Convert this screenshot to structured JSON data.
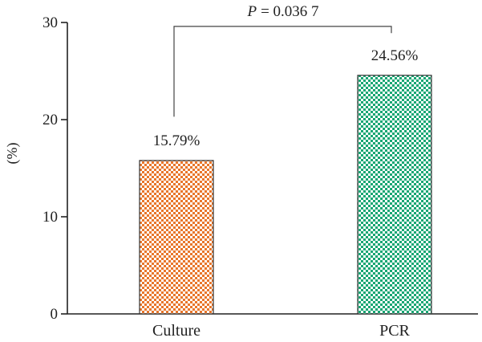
{
  "chart_data": {
    "type": "bar",
    "categories": [
      "Culture",
      "PCR"
    ],
    "values": [
      15.79,
      24.56
    ],
    "value_labels": [
      "15.79%",
      "24.56%"
    ],
    "colors": [
      "#e8762b",
      "#17a673"
    ],
    "ylabel": "(%)",
    "ylim": [
      0,
      30
    ],
    "yticks": [
      0,
      10,
      20,
      30
    ],
    "grid": false,
    "significance": {
      "p_symbol": "P",
      "p_value": "= 0.036 7"
    }
  }
}
